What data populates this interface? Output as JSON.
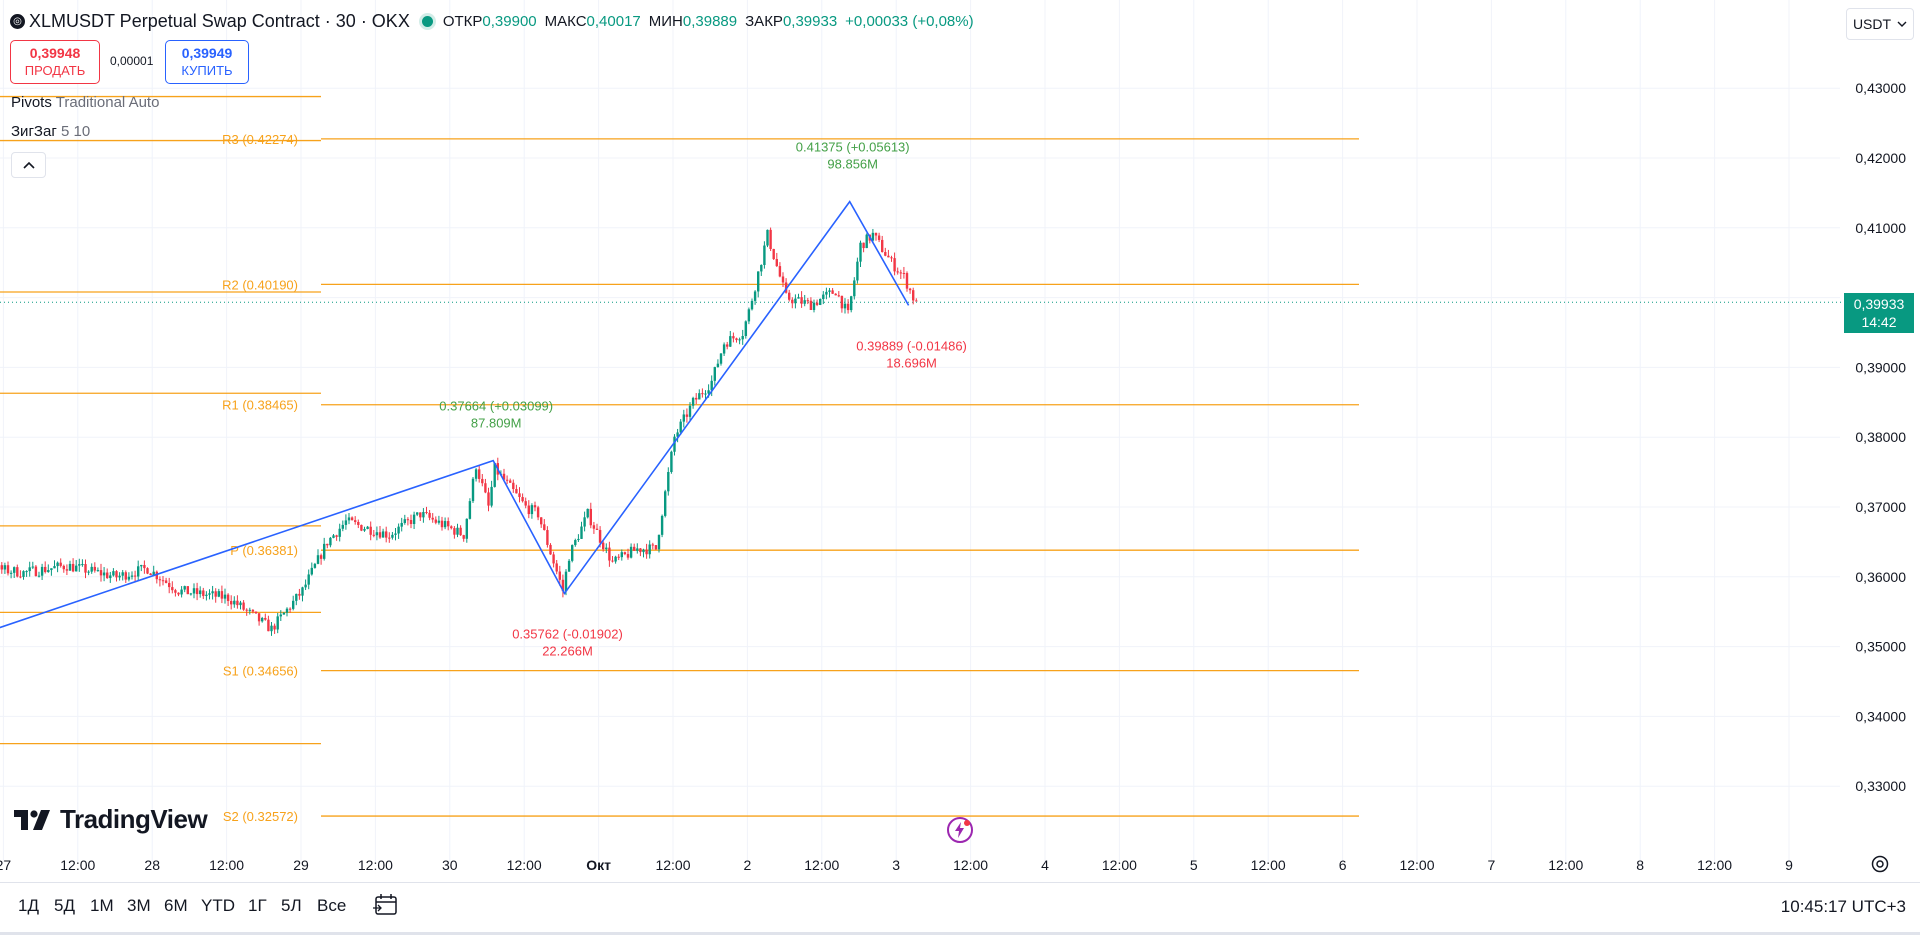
{
  "header": {
    "symbol_title": "XLMUSDT Perpetual Swap Contract · 30 · OKX",
    "ohlc": {
      "open_label": "ОТКР",
      "open_value": "0,39900",
      "high_label": "МАКС",
      "high_value": "0,40017",
      "low_label": "МИН",
      "low_value": "0,39889",
      "close_label": "ЗАКР",
      "close_value": "0,39933",
      "change": "+0,00033 (+0,08%)"
    },
    "status_color": "#089981"
  },
  "trade": {
    "sell_price": "0,39948",
    "sell_label": "ПРОДАТЬ",
    "spread": "0,00001",
    "buy_price": "0,39949",
    "buy_label": "КУПИТЬ"
  },
  "indicators": [
    {
      "name": "Pivots",
      "params": "Traditional Auto"
    },
    {
      "name": "ЗигЗаг",
      "params": "5 10"
    }
  ],
  "currency": {
    "label": "USDT"
  },
  "price_tag": {
    "price": "0,39933",
    "countdown": "14:42"
  },
  "timeframes": [
    "1Д",
    "5Д",
    "1М",
    "3М",
    "6М",
    "YTD",
    "1Г",
    "5Л",
    "Все"
  ],
  "clock": "10:45:17 UTC+3",
  "branding": {
    "name": "TradingView"
  },
  "icons": {
    "calendar": "calendar-range-icon",
    "settings": "gear-icon",
    "collapse": "chevron-up-icon",
    "bolt": "bolt-icon",
    "logo": "tradingview-logo-icon"
  },
  "colors": {
    "up": "#089981",
    "down": "#f23645",
    "pivot": "#f7a21b",
    "zigzag": "#2962ff",
    "grid": "#f0f3fa"
  },
  "chart_data": {
    "type": "candlestick",
    "y_ticks": [
      "0,43000",
      "0,42000",
      "0,41000",
      "0,40000",
      "0,39000",
      "0,38000",
      "0,37000",
      "0,36000",
      "0,35000",
      "0,34000",
      "0,33000"
    ],
    "y_tick_values": [
      0.43,
      0.42,
      0.41,
      0.4,
      0.39,
      0.38,
      0.37,
      0.36,
      0.35,
      0.34,
      0.33
    ],
    "x_ticks": [
      {
        "label": "27",
        "t": -48
      },
      {
        "label": "12:00",
        "t": -36
      },
      {
        "label": "28",
        "t": -24
      },
      {
        "label": "12:00",
        "t": -12
      },
      {
        "label": "29",
        "t": 0
      },
      {
        "label": "12:00",
        "t": 12
      },
      {
        "label": "30",
        "t": 24
      },
      {
        "label": "12:00",
        "t": 36
      },
      {
        "label": "Окт",
        "t": 48
      },
      {
        "label": "12:00",
        "t": 60
      },
      {
        "label": "2",
        "t": 72
      },
      {
        "label": "12:00",
        "t": 84
      },
      {
        "label": "3",
        "t": 96
      },
      {
        "label": "12:00",
        "t": 108
      },
      {
        "label": "4",
        "t": 120
      },
      {
        "label": "12:00",
        "t": 132
      },
      {
        "label": "5",
        "t": 144
      },
      {
        "label": "12:00",
        "t": 156
      },
      {
        "label": "6",
        "t": 168
      },
      {
        "label": "12:00",
        "t": 180
      },
      {
        "label": "7",
        "t": 192
      },
      {
        "label": "12:00",
        "t": 204
      },
      {
        "label": "8",
        "t": 216
      },
      {
        "label": "12:00",
        "t": 228
      },
      {
        "label": "9",
        "t": 240
      }
    ],
    "current_price": 0.39933,
    "pivots_current": [
      {
        "label": "R3 (0.42274)",
        "value": 0.42274
      },
      {
        "label": "R2 (0.40190)",
        "value": 0.4019
      },
      {
        "label": "R1 (0.38465)",
        "value": 0.38465
      },
      {
        "label": "P (0.36381)",
        "value": 0.36381
      },
      {
        "label": "S1 (0.34656)",
        "value": 0.34656
      },
      {
        "label": "S2 (0.32572)",
        "value": 0.32572
      }
    ],
    "pivots_previous": [
      0.4288,
      0.4225,
      0.4008,
      0.3863,
      0.3673,
      0.3549,
      0.3361
    ],
    "zigzag": [
      {
        "t": -60,
        "price": 0.3493
      },
      {
        "t": 31,
        "price": 0.37664
      },
      {
        "t": 42.5,
        "price": 0.35762
      },
      {
        "t": 88.5,
        "price": 0.41375
      },
      {
        "t": 98,
        "price": 0.39889
      }
    ],
    "zigzag_labels": [
      {
        "t": 31,
        "price": 0.37664,
        "text": "0.37664 (+0.03099)",
        "volume": "87.809M",
        "dir": "up"
      },
      {
        "t": 42.5,
        "price": 0.35762,
        "text": "0.35762 (-0.01902)",
        "volume": "22.266M",
        "dir": "down"
      },
      {
        "t": 88.5,
        "price": 0.41375,
        "text": "0.41375 (+0.05613)",
        "volume": "98.856M",
        "dir": "up"
      },
      {
        "t": 98,
        "price": 0.39889,
        "text": "0.39889 (-0.01486)",
        "volume": "18.696M",
        "dir": "down"
      }
    ],
    "price_path": [
      [
        -60,
        0.3618
      ],
      [
        -50,
        0.3612
      ],
      [
        -45,
        0.3606
      ],
      [
        -38,
        0.3616
      ],
      [
        -30,
        0.36
      ],
      [
        -25,
        0.3612
      ],
      [
        -20,
        0.358
      ],
      [
        -12,
        0.357
      ],
      [
        -5,
        0.3525
      ],
      [
        0,
        0.358
      ],
      [
        4,
        0.365
      ],
      [
        7,
        0.3679
      ],
      [
        14,
        0.366
      ],
      [
        19,
        0.369
      ],
      [
        26,
        0.366
      ],
      [
        28,
        0.376
      ],
      [
        30,
        0.37
      ],
      [
        31,
        0.3755
      ],
      [
        36,
        0.37
      ],
      [
        38,
        0.369
      ],
      [
        42,
        0.358
      ],
      [
        43,
        0.363
      ],
      [
        46,
        0.369
      ],
      [
        50,
        0.362
      ],
      [
        54,
        0.364
      ],
      [
        57,
        0.364
      ],
      [
        60,
        0.38
      ],
      [
        63,
        0.385
      ],
      [
        66,
        0.388
      ],
      [
        68,
        0.3935
      ],
      [
        71,
        0.395
      ],
      [
        72,
        0.398
      ],
      [
        75,
        0.409
      ],
      [
        78,
        0.4
      ],
      [
        82,
        0.399
      ],
      [
        86,
        0.401
      ],
      [
        88,
        0.3975
      ],
      [
        90,
        0.4075
      ],
      [
        92,
        0.409
      ],
      [
        95,
        0.405
      ],
      [
        97,
        0.403
      ],
      [
        99,
        0.399
      ]
    ]
  }
}
